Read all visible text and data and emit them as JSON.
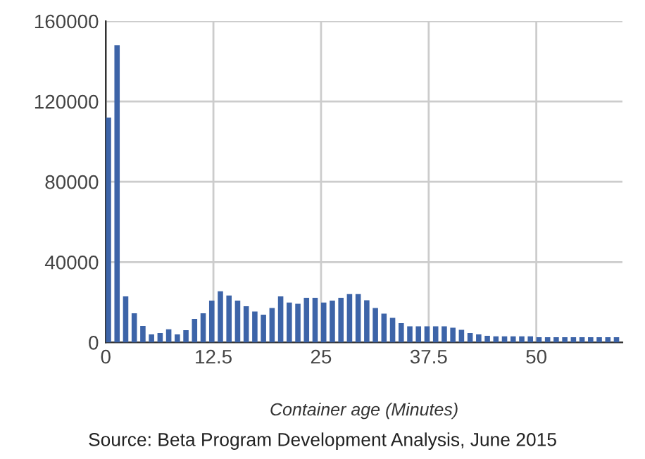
{
  "chart_data": {
    "type": "histogram",
    "xlabel": "Container age (Minutes)",
    "bins": [
      0,
      1,
      2,
      3,
      4,
      5,
      6,
      7,
      8,
      9,
      10,
      11,
      12,
      13,
      14,
      15,
      16,
      17,
      18,
      19,
      20,
      21,
      22,
      23,
      24,
      25,
      26,
      27,
      28,
      29,
      30,
      31,
      32,
      33,
      34,
      35,
      36,
      37,
      38,
      39,
      40,
      41,
      42,
      43,
      44,
      45,
      46,
      47,
      48,
      49,
      50,
      51,
      52,
      53,
      54,
      55,
      56,
      57,
      58,
      59,
      60
    ],
    "values": [
      112000,
      148000,
      22900,
      14500,
      8200,
      4000,
      4700,
      6500,
      4000,
      6100,
      11700,
      14500,
      20800,
      25500,
      23400,
      20800,
      18000,
      15400,
      13800,
      17100,
      22900,
      19900,
      19200,
      22200,
      22200,
      19900,
      20800,
      22200,
      24100,
      24100,
      21000,
      17100,
      14300,
      12200,
      9600,
      8000,
      8000,
      8000,
      8000,
      8000,
      7300,
      6300,
      4700,
      4000,
      3300,
      3000,
      3000,
      3000,
      3000,
      3000,
      2600,
      2600,
      2600,
      2600,
      2600,
      2600,
      2600,
      2600,
      2600,
      2600
    ],
    "color": "#3d64a8",
    "xlim": [
      0,
      60
    ],
    "ylim": [
      0,
      160000
    ],
    "xticks": [
      0,
      12.5,
      25,
      37.5,
      50
    ],
    "yticks": [
      0,
      40000,
      80000,
      120000,
      160000
    ],
    "grid": true,
    "annotations": [
      "Source: Beta Program Development Analysis, June 2015"
    ]
  }
}
